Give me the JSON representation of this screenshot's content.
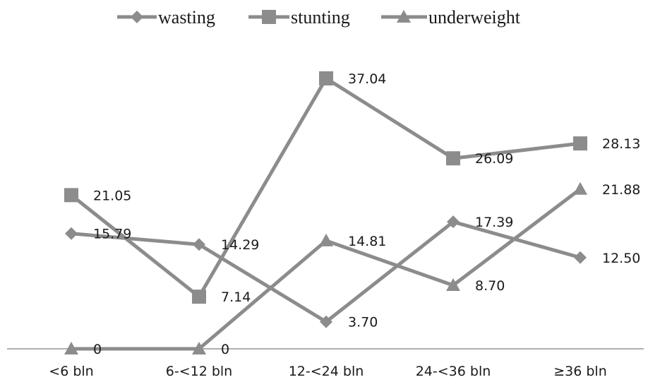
{
  "chart_data": {
    "type": "line",
    "categories": [
      "<6 bln",
      "6-<12 bln",
      "12-<24 bln",
      "24-<36 bln",
      "≥36 bln"
    ],
    "ylim": [
      0,
      40
    ],
    "grid": false,
    "legend_position": "top",
    "series": [
      {
        "name": "wasting",
        "marker": "diamond",
        "values": [
          15.79,
          14.29,
          3.7,
          17.39,
          12.5
        ],
        "labels": [
          "15.79",
          "14.29",
          "3.70",
          "17.39",
          "12.50"
        ]
      },
      {
        "name": "stunting",
        "marker": "square",
        "values": [
          21.05,
          7.14,
          37.04,
          26.09,
          28.13
        ],
        "labels": [
          "21.05",
          "7.14",
          "37.04",
          "26.09",
          "28.13"
        ]
      },
      {
        "name": "underweight",
        "marker": "triangle",
        "values": [
          0,
          0,
          14.81,
          8.7,
          21.88
        ],
        "labels": [
          "0",
          "0",
          "14.81",
          "8.70",
          "21.88"
        ]
      }
    ],
    "colors": {
      "line": "#8c8c8c",
      "marker": "#8c8c8c",
      "axis": "#7f7f7f",
      "text": "#1a1a1a"
    }
  }
}
